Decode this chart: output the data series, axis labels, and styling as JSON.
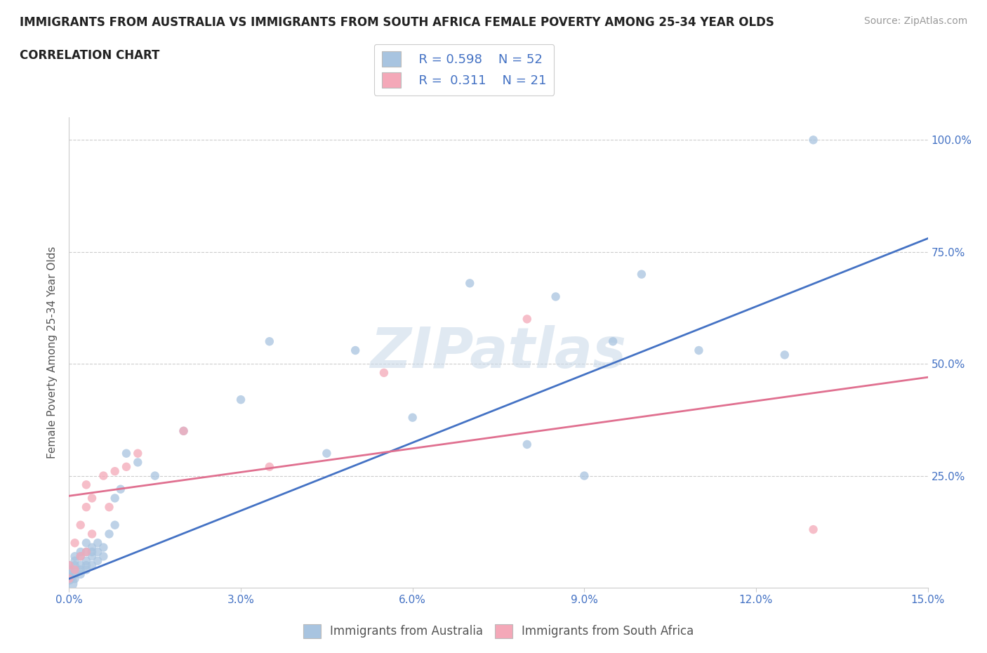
{
  "title_line1": "IMMIGRANTS FROM AUSTRALIA VS IMMIGRANTS FROM SOUTH AFRICA FEMALE POVERTY AMONG 25-34 YEAR OLDS",
  "title_line2": "CORRELATION CHART",
  "source": "Source: ZipAtlas.com",
  "ylabel": "Female Poverty Among 25-34 Year Olds",
  "xlim": [
    0.0,
    0.15
  ],
  "ylim": [
    0.0,
    1.05
  ],
  "xticks": [
    0.0,
    0.03,
    0.06,
    0.09,
    0.12,
    0.15
  ],
  "xtick_labels": [
    "0.0%",
    "3.0%",
    "6.0%",
    "9.0%",
    "12.0%",
    "15.0%"
  ],
  "yticks": [
    0.25,
    0.5,
    0.75,
    1.0
  ],
  "ytick_labels": [
    "25.0%",
    "50.0%",
    "75.0%",
    "100.0%"
  ],
  "australia_color": "#a8c4e0",
  "south_africa_color": "#f4a8b8",
  "australia_line_color": "#4472c4",
  "south_africa_line_color": "#e07090",
  "watermark": "ZIPatlas",
  "legend_r_australia": "R = 0.598",
  "legend_n_australia": "N = 52",
  "legend_r_south_africa": "R =  0.311",
  "legend_n_south_africa": "N = 21",
  "aus_line_x0": 0.0,
  "aus_line_y0": 0.02,
  "aus_line_x1": 0.15,
  "aus_line_y1": 0.78,
  "sa_line_x0": 0.0,
  "sa_line_y0": 0.205,
  "sa_line_x1": 0.15,
  "sa_line_y1": 0.47,
  "australia_x": [
    0.0,
    0.0,
    0.0,
    0.0,
    0.0,
    0.001,
    0.001,
    0.001,
    0.001,
    0.001,
    0.001,
    0.002,
    0.002,
    0.002,
    0.002,
    0.002,
    0.003,
    0.003,
    0.003,
    0.003,
    0.003,
    0.004,
    0.004,
    0.004,
    0.004,
    0.005,
    0.005,
    0.005,
    0.006,
    0.006,
    0.007,
    0.008,
    0.008,
    0.009,
    0.01,
    0.012,
    0.015,
    0.02,
    0.03,
    0.035,
    0.045,
    0.05,
    0.06,
    0.07,
    0.08,
    0.085,
    0.09,
    0.095,
    0.1,
    0.11,
    0.125,
    0.13
  ],
  "australia_y": [
    0.01,
    0.02,
    0.03,
    0.04,
    0.05,
    0.02,
    0.03,
    0.04,
    0.05,
    0.06,
    0.07,
    0.03,
    0.04,
    0.05,
    0.07,
    0.08,
    0.04,
    0.05,
    0.06,
    0.08,
    0.1,
    0.05,
    0.07,
    0.08,
    0.09,
    0.06,
    0.08,
    0.1,
    0.07,
    0.09,
    0.12,
    0.14,
    0.2,
    0.22,
    0.3,
    0.28,
    0.25,
    0.35,
    0.42,
    0.55,
    0.3,
    0.53,
    0.38,
    0.68,
    0.32,
    0.65,
    0.25,
    0.55,
    0.7,
    0.53,
    0.52,
    1.0
  ],
  "australia_sizes": [
    300,
    150,
    80,
    80,
    80,
    80,
    80,
    80,
    80,
    80,
    80,
    80,
    80,
    80,
    80,
    80,
    80,
    80,
    80,
    80,
    80,
    80,
    80,
    80,
    80,
    80,
    80,
    80,
    80,
    80,
    80,
    80,
    80,
    80,
    80,
    80,
    80,
    80,
    80,
    80,
    80,
    80,
    80,
    80,
    80,
    80,
    80,
    80,
    80,
    80,
    80,
    80
  ],
  "south_africa_x": [
    0.0,
    0.0,
    0.001,
    0.001,
    0.002,
    0.002,
    0.003,
    0.003,
    0.003,
    0.004,
    0.004,
    0.006,
    0.007,
    0.008,
    0.01,
    0.012,
    0.02,
    0.035,
    0.055,
    0.08,
    0.13
  ],
  "south_africa_y": [
    0.02,
    0.05,
    0.04,
    0.1,
    0.07,
    0.14,
    0.08,
    0.18,
    0.23,
    0.12,
    0.2,
    0.25,
    0.18,
    0.26,
    0.27,
    0.3,
    0.35,
    0.27,
    0.48,
    0.6,
    0.13
  ],
  "south_africa_sizes": [
    80,
    80,
    80,
    80,
    80,
    80,
    80,
    80,
    80,
    80,
    80,
    80,
    80,
    80,
    80,
    80,
    80,
    80,
    80,
    80,
    80
  ]
}
